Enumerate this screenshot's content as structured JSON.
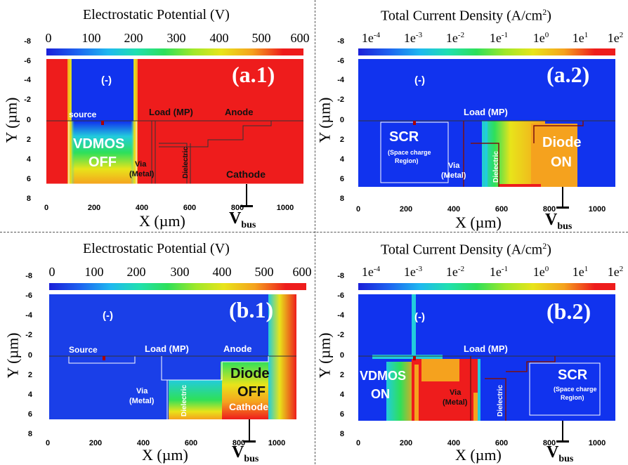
{
  "panels": {
    "a1": {
      "title_main": "Electrostatic Potential (V)",
      "panel_label": "(a.1)",
      "colorbar_ticks": [
        "0",
        "100",
        "200",
        "300",
        "400",
        "500",
        "600"
      ],
      "labels": {
        "minus": "(-)",
        "source": "source",
        "load": "Load (MP)",
        "anode": "Anode",
        "device": "VDMOS",
        "state": "OFF",
        "via": "Via",
        "via_metal": "(Metal)",
        "dielectric": "Dielectric",
        "cathode": "Cathode"
      }
    },
    "a2": {
      "title_main": "Total Current Density (A/cm",
      "title_sup": "2",
      "title_end": ")",
      "panel_label": "(a.2)",
      "colorbar_ticks": [
        {
          "b": "1e",
          "e": "-4"
        },
        {
          "b": "1e",
          "e": "-3"
        },
        {
          "b": "1e",
          "e": "-2"
        },
        {
          "b": "1e",
          "e": "-1"
        },
        {
          "b": "1e",
          "e": "0"
        },
        {
          "b": "1e",
          "e": "1"
        },
        {
          "b": "1e",
          "e": "2"
        }
      ],
      "labels": {
        "minus": "(-)",
        "scr": "SCR",
        "scr_sub": "(Space charge",
        "scr_sub2": "Region)",
        "load": "Load (MP)",
        "via": "Via",
        "via_metal": "(Metal)",
        "dielectric": "Dielectric",
        "device": "Diode",
        "state": "ON"
      }
    },
    "b1": {
      "title_main": "Electrostatic Potential (V)",
      "panel_label": "(b.1)",
      "colorbar_ticks": [
        "0",
        "100",
        "200",
        "300",
        "400",
        "500",
        "600"
      ],
      "labels": {
        "minus": "(-)",
        "source": "Source",
        "load": "Load (MP)",
        "anode": "Anode",
        "device": "Diode",
        "state": "OFF",
        "via": "Via",
        "via_metal": "(Metal)",
        "dielectric": "Dielectric",
        "cathode": "Cathode"
      }
    },
    "b2": {
      "title_main": "Total Current Density (A/cm",
      "title_sup": "2",
      "title_end": ")",
      "panel_label": "(b.2)",
      "colorbar_ticks": [
        {
          "b": "1e",
          "e": "-4"
        },
        {
          "b": "1e",
          "e": "-3"
        },
        {
          "b": "1e",
          "e": "-2"
        },
        {
          "b": "1e",
          "e": "-1"
        },
        {
          "b": "1e",
          "e": "0"
        },
        {
          "b": "1e",
          "e": "1"
        },
        {
          "b": "1e",
          "e": "2"
        }
      ],
      "labels": {
        "minus": "(-)",
        "load": "Load (MP)",
        "device": "VDMOS",
        "state": "ON",
        "via": "Via",
        "via_metal": "(Metal)",
        "dielectric": "Dielectric",
        "scr": "SCR",
        "scr_sub": "(Space charge",
        "scr_sub2": "Region)"
      }
    }
  },
  "axes": {
    "y_ticks": [
      "-8",
      "-6",
      "-4",
      "-2",
      "0",
      "2",
      "4",
      "6",
      "8"
    ],
    "x_ticks": [
      "0",
      "200",
      "400",
      "600",
      "800",
      "1000"
    ],
    "x_label": "X (µm)",
    "y_label": "Y (µm)",
    "vbus_main": "V",
    "vbus_sub": "bus"
  },
  "colors": {
    "red": "#ee1c1c",
    "blue": "#1133ee",
    "orange": "#f5a21e",
    "yellow": "#e8e41a",
    "green": "#22cc66",
    "cyan": "#22ccdd"
  }
}
